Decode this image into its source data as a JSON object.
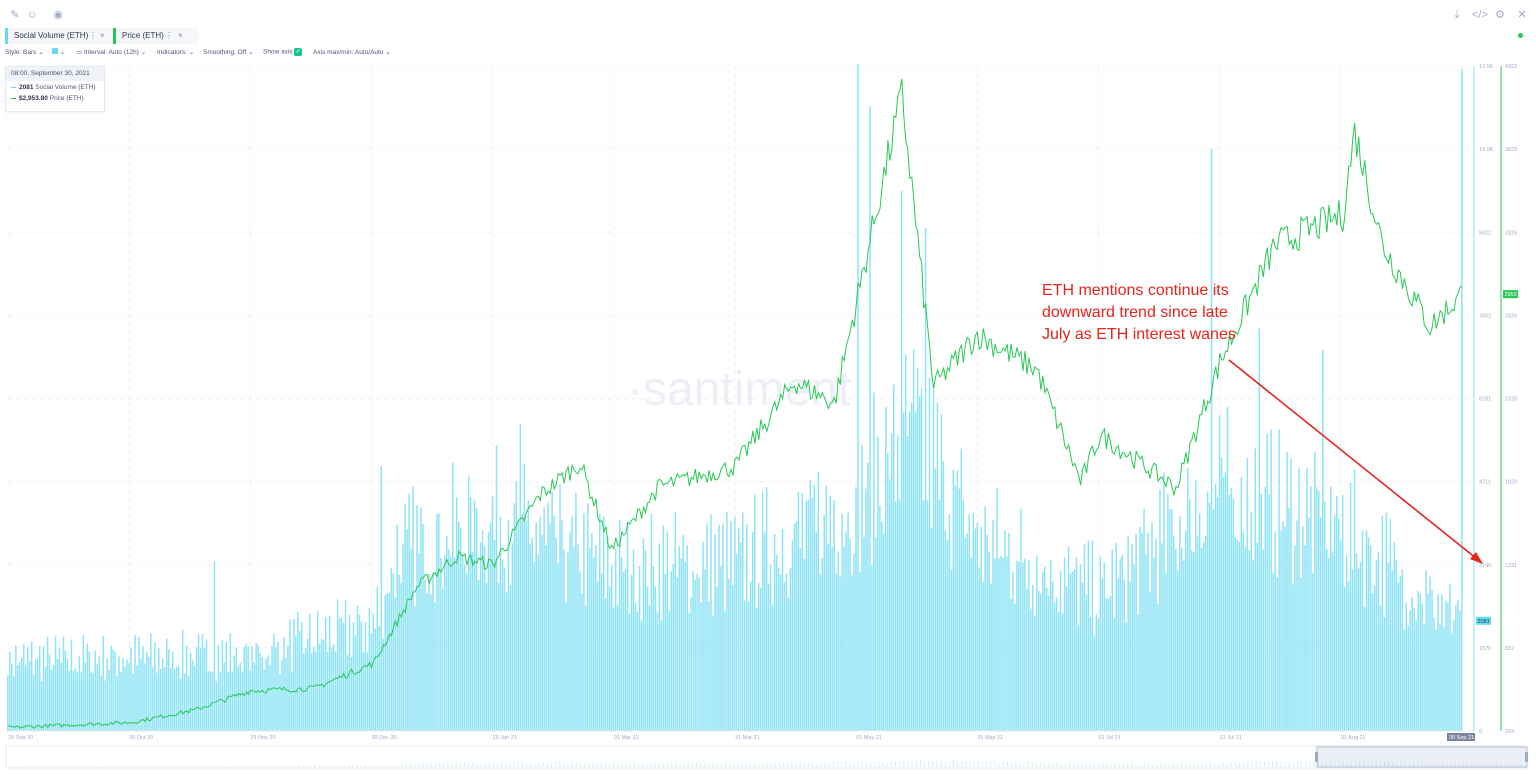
{
  "toolbar": {
    "icons": [
      "draw-icon",
      "emoji-icon",
      "eye-icon",
      "download-icon",
      "embed-code-icon",
      "settings-icon",
      "close-icon"
    ]
  },
  "metrics": [
    {
      "label": "Social Volume (ETH)",
      "color": "#67d9f0"
    },
    {
      "label": "Price (ETH)",
      "color": "#26c953"
    }
  ],
  "settings": {
    "style": "Style: Bars",
    "interval": "Interval: Auto (12h)",
    "indicators": "Indicators:",
    "smoothing": "Smoothing: Off",
    "show_axis": "Show axis",
    "axis_maxmin": "Axis max/min: Auto/Auto"
  },
  "tooltip": {
    "date": "08:00, September 30, 2021",
    "social_value": "2081",
    "social_label": "Social Volume (ETH)",
    "price_value": "$2,953.80",
    "price_label": "Price (ETH)"
  },
  "annotation": {
    "lines": [
      "ETH mentions continue its",
      "downward trend since late",
      "July as ETH interest wanes"
    ]
  },
  "watermark": "·santiment",
  "chart_data": {
    "type": "bar",
    "x_ticks": [
      "29 Sep 20",
      "30 Oct 20",
      "29 Nov 20",
      "30 Dec 20",
      "29 Jan 21",
      "01 Mar 21",
      "31 Mar 21",
      "01 May 21",
      "31 May 21",
      "01 Jul 21",
      "31 Jul 21",
      "31 Aug 21",
      "30 Sep 21"
    ],
    "y_left_ticks": [
      "12.5K",
      "10.9K",
      "9422",
      "7852",
      "6281",
      "4711",
      "3140",
      "1570",
      "0"
    ],
    "y_left_lim": [
      0,
      12560
    ],
    "y_right_ticks": [
      "4322",
      "3823",
      "3325",
      "2826",
      "2328",
      "1829",
      "1331",
      "832",
      "334"
    ],
    "y_right_lim": [
      334,
      4322
    ],
    "last_values": {
      "social_volume": "2081",
      "price": "2953"
    },
    "series": [
      {
        "name": "Social Volume (ETH)",
        "type": "bar",
        "color": "#8ee3f5",
        "anchors": [
          {
            "date": "2020-09-29",
            "value": 1400
          },
          {
            "date": "2020-10-30",
            "value": 1450
          },
          {
            "date": "2020-11-29",
            "value": 1500
          },
          {
            "date": "2020-12-30",
            "value": 2100
          },
          {
            "date": "2021-01-05",
            "value": 3500
          },
          {
            "date": "2021-01-29",
            "value": 4200
          },
          {
            "date": "2021-03-01",
            "value": 3200
          },
          {
            "date": "2021-03-31",
            "value": 3300
          },
          {
            "date": "2021-05-01",
            "value": 4500
          },
          {
            "date": "2021-05-15",
            "value": 6000
          },
          {
            "date": "2021-05-31",
            "value": 3800
          },
          {
            "date": "2021-07-01",
            "value": 2700
          },
          {
            "date": "2021-07-20",
            "value": 4000
          },
          {
            "date": "2021-07-31",
            "value": 4800
          },
          {
            "date": "2021-08-31",
            "value": 4000
          },
          {
            "date": "2021-09-30",
            "value": 2081
          }
        ],
        "spikes": [
          {
            "date": "2020-11-20",
            "value": 3200
          },
          {
            "date": "2021-01-01",
            "value": 5000
          },
          {
            "date": "2021-02-05",
            "value": 5800
          },
          {
            "date": "2021-05-01",
            "value": 12600
          },
          {
            "date": "2021-05-04",
            "value": 11800
          },
          {
            "date": "2021-05-12",
            "value": 10200
          },
          {
            "date": "2021-05-18",
            "value": 9500
          },
          {
            "date": "2021-07-29",
            "value": 11000
          },
          {
            "date": "2021-08-10",
            "value": 7600
          },
          {
            "date": "2021-08-26",
            "value": 7200
          },
          {
            "date": "2021-09-30",
            "value": 12500
          }
        ]
      },
      {
        "name": "Price (ETH)",
        "type": "line",
        "color": "#26c953",
        "points": [
          {
            "date": "2020-09-29",
            "value": 355
          },
          {
            "date": "2020-10-30",
            "value": 385
          },
          {
            "date": "2020-11-15",
            "value": 460
          },
          {
            "date": "2020-11-29",
            "value": 575
          },
          {
            "date": "2020-12-15",
            "value": 590
          },
          {
            "date": "2020-12-30",
            "value": 740
          },
          {
            "date": "2021-01-10",
            "value": 1200
          },
          {
            "date": "2021-01-20",
            "value": 1380
          },
          {
            "date": "2021-01-29",
            "value": 1330
          },
          {
            "date": "2021-02-10",
            "value": 1750
          },
          {
            "date": "2021-02-20",
            "value": 1940
          },
          {
            "date": "2021-02-28",
            "value": 1420
          },
          {
            "date": "2021-03-12",
            "value": 1800
          },
          {
            "date": "2021-03-31",
            "value": 1920
          },
          {
            "date": "2021-04-15",
            "value": 2430
          },
          {
            "date": "2021-04-25",
            "value": 2300
          },
          {
            "date": "2021-05-01",
            "value": 2950
          },
          {
            "date": "2021-05-12",
            "value": 4150
          },
          {
            "date": "2021-05-20",
            "value": 2400
          },
          {
            "date": "2021-05-31",
            "value": 2710
          },
          {
            "date": "2021-06-15",
            "value": 2500
          },
          {
            "date": "2021-06-26",
            "value": 1830
          },
          {
            "date": "2021-07-01",
            "value": 2110
          },
          {
            "date": "2021-07-20",
            "value": 1790
          },
          {
            "date": "2021-07-31",
            "value": 2540
          },
          {
            "date": "2021-08-14",
            "value": 3250
          },
          {
            "date": "2021-08-31",
            "value": 3430
          },
          {
            "date": "2021-09-03",
            "value": 3930
          },
          {
            "date": "2021-09-10",
            "value": 3250
          },
          {
            "date": "2021-09-22",
            "value": 2760
          },
          {
            "date": "2021-09-30",
            "value": 2953.8
          }
        ]
      }
    ],
    "grid": true
  }
}
